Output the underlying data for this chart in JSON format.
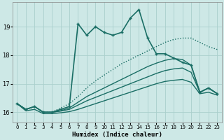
{
  "xlabel": "Humidex (Indice chaleur)",
  "bg_color": "#cde8e6",
  "grid_color": "#aacfcc",
  "line_color": "#1a6e65",
  "xlim": [
    -0.5,
    23.5
  ],
  "ylim": [
    15.65,
    19.85
  ],
  "yticks": [
    16,
    17,
    18,
    19
  ],
  "xticks": [
    0,
    1,
    2,
    3,
    4,
    5,
    6,
    7,
    8,
    9,
    10,
    11,
    12,
    13,
    14,
    15,
    16,
    17,
    18,
    19,
    20,
    21,
    22,
    23
  ],
  "series": {
    "main": {
      "x": [
        0,
        1,
        2,
        3,
        4,
        5,
        6,
        7,
        8,
        9,
        10,
        11,
        12,
        13,
        14,
        15,
        16,
        17,
        18,
        19,
        20,
        21,
        22,
        23
      ],
      "y": [
        16.3,
        16.1,
        16.2,
        16.0,
        16.0,
        16.1,
        16.2,
        19.1,
        18.7,
        19.0,
        18.8,
        18.7,
        18.8,
        19.3,
        19.6,
        18.6,
        18.05,
        18.05,
        17.9,
        17.75,
        17.65,
        16.7,
        16.85,
        16.65
      ],
      "style": "-",
      "marker": "+",
      "lw": 1.2
    },
    "dotted": {
      "x": [
        0,
        1,
        2,
        3,
        4,
        5,
        6,
        7,
        8,
        9,
        10,
        11,
        12,
        13,
        14,
        15,
        16,
        17,
        18,
        19,
        20,
        21,
        22,
        23
      ],
      "y": [
        16.3,
        16.1,
        16.2,
        16.0,
        16.0,
        16.15,
        16.3,
        16.55,
        16.85,
        17.1,
        17.3,
        17.5,
        17.7,
        17.85,
        18.0,
        18.15,
        18.3,
        18.45,
        18.55,
        18.6,
        18.6,
        18.45,
        18.3,
        18.2
      ],
      "style": ":",
      "marker": null,
      "lw": 1.0
    },
    "line2": {
      "x": [
        0,
        1,
        2,
        3,
        4,
        5,
        6,
        7,
        8,
        9,
        10,
        11,
        12,
        13,
        14,
        15,
        16,
        17,
        18,
        19,
        20,
        21,
        22,
        23
      ],
      "y": [
        16.3,
        16.1,
        16.2,
        16.0,
        16.0,
        16.05,
        16.15,
        16.35,
        16.55,
        16.7,
        16.85,
        17.0,
        17.15,
        17.3,
        17.45,
        17.6,
        17.72,
        17.82,
        17.88,
        17.85,
        17.65,
        16.7,
        16.85,
        16.65
      ],
      "style": "-",
      "marker": null,
      "lw": 1.0
    },
    "line3": {
      "x": [
        0,
        1,
        2,
        3,
        4,
        5,
        6,
        7,
        8,
        9,
        10,
        11,
        12,
        13,
        14,
        15,
        16,
        17,
        18,
        19,
        20,
        21,
        22,
        23
      ],
      "y": [
        16.3,
        16.1,
        16.2,
        16.0,
        16.0,
        16.04,
        16.1,
        16.25,
        16.4,
        16.52,
        16.64,
        16.76,
        16.88,
        17.0,
        17.12,
        17.24,
        17.36,
        17.46,
        17.52,
        17.55,
        17.4,
        16.7,
        16.85,
        16.65
      ],
      "style": "-",
      "marker": null,
      "lw": 1.0
    },
    "line4": {
      "x": [
        0,
        1,
        2,
        3,
        4,
        5,
        6,
        7,
        8,
        9,
        10,
        11,
        12,
        13,
        14,
        15,
        16,
        17,
        18,
        19,
        20,
        21,
        22,
        23
      ],
      "y": [
        16.3,
        16.05,
        16.1,
        15.95,
        15.95,
        15.98,
        16.02,
        16.1,
        16.2,
        16.3,
        16.4,
        16.5,
        16.6,
        16.7,
        16.8,
        16.9,
        17.0,
        17.08,
        17.12,
        17.15,
        17.05,
        16.65,
        16.7,
        16.6
      ],
      "style": "-",
      "marker": null,
      "lw": 1.0
    }
  }
}
